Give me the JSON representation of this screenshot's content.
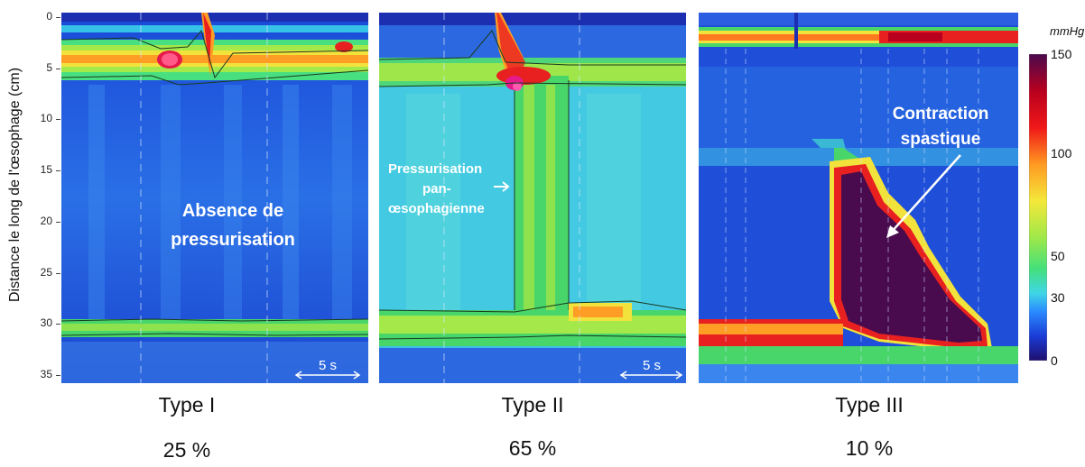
{
  "chart_data": {
    "type": "heatmap",
    "ylabel": "Distance le long de l'œsophage (cm)",
    "y_ticks": [
      "0",
      "5",
      "10",
      "15",
      "20",
      "25",
      "30",
      "35"
    ],
    "ylim": [
      0,
      36
    ],
    "colorbar": {
      "unit": "mmHg",
      "ticks": [
        "150",
        "100",
        "50",
        "30",
        "0"
      ],
      "range": [
        0,
        150
      ],
      "colors": [
        "#1f0f6e",
        "#1a3cd6",
        "#2b8bff",
        "#3fd6e6",
        "#44e07a",
        "#9ee84a",
        "#f4e83a",
        "#ff9a22",
        "#f01818",
        "#b8001e",
        "#4a0a4e"
      ]
    },
    "panels": [
      {
        "title": "Type I",
        "percentage": "25 %",
        "annotation": [
          "Absence de",
          "pressurisation"
        ],
        "scale_bar": "5 s"
      },
      {
        "title": "Type II",
        "percentage": "65 %",
        "annotation": [
          "Pressurisation",
          "pan-",
          "œsophagienne"
        ],
        "scale_bar": "5 s"
      },
      {
        "title": "Type III",
        "percentage": "10 %",
        "annotation": [
          "Contraction",
          "spastique"
        ]
      }
    ]
  }
}
